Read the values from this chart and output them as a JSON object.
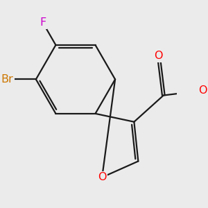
{
  "bg_color": "#ebebeb",
  "bond_color": "#1a1a1a",
  "bond_width": 1.6,
  "atom_colors": {
    "O": "#ff0000",
    "Br": "#cc7700",
    "F": "#cc00cc",
    "C": "#1a1a1a"
  },
  "font_size_atom": 11.5,
  "dbo": 0.1
}
